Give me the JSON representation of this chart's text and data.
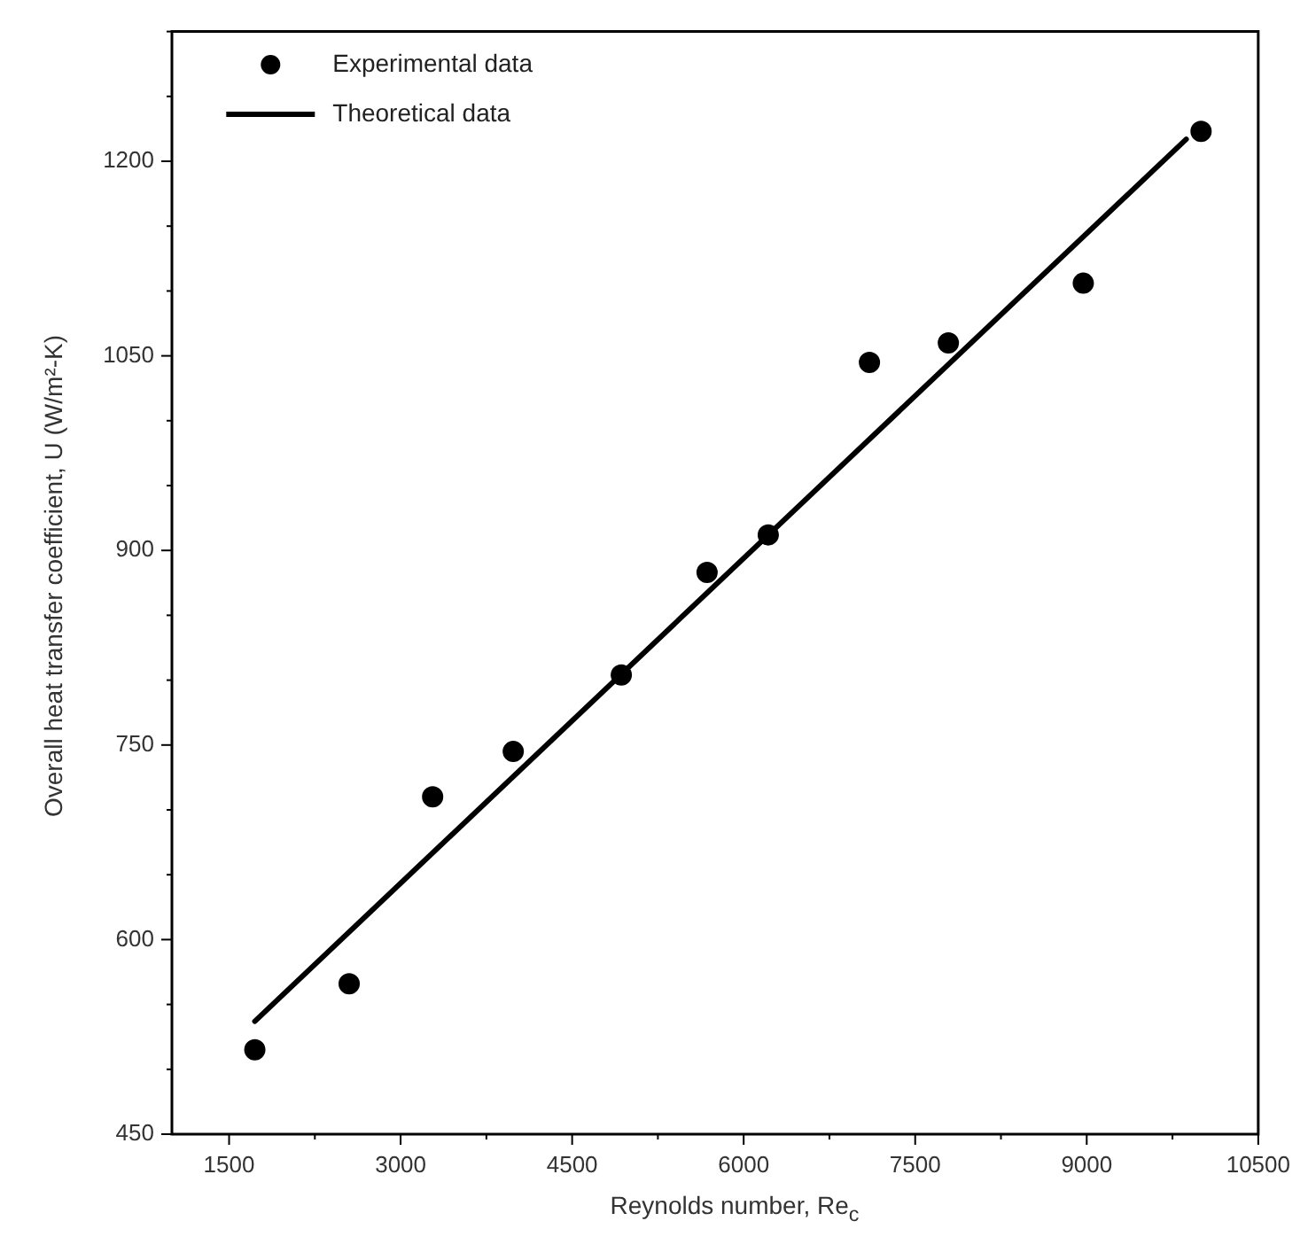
{
  "chart_data": {
    "type": "scatter",
    "xlabel": "Reynolds number, Re$_{c}$",
    "ylabel": "Overall heat transfer coefficient, U (W/m²-K)",
    "xlim": [
      1000,
      10500
    ],
    "xticks": [
      1500,
      3000,
      4500,
      6000,
      7500,
      9000,
      10500
    ],
    "ylim": [
      450,
      1300
    ],
    "yticks": [
      450,
      600,
      750,
      900,
      1050,
      1200
    ],
    "grid": false,
    "legend": "top left",
    "series": [
      {
        "name": "Experimental data",
        "marker": "circle",
        "color": "#000000",
        "x": [
          1725,
          2550,
          3280,
          3985,
          4930,
          5680,
          6215,
          7100,
          7790,
          8970,
          10000
        ],
        "values": [
          515,
          566,
          710,
          745,
          804,
          883,
          912,
          1045,
          1060,
          1106,
          1223
        ]
      },
      {
        "name": "Theoretical data",
        "type": "line",
        "marker": "none",
        "line_style": "solid",
        "color": "#000000",
        "x": [
          1725,
          9870
        ],
        "values": [
          537,
          1217
        ]
      }
    ]
  }
}
